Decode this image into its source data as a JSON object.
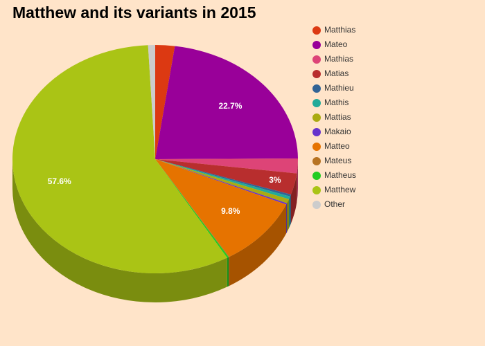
{
  "chart_data": {
    "type": "pie",
    "title": "Matthew and its variants in 2015",
    "series": [
      {
        "name": "Matthias",
        "color": "#dc3912",
        "values": [
          2.2
        ]
      },
      {
        "name": "Mateo",
        "color": "#990099",
        "values": [
          22.7
        ],
        "value_labels": [
          "22.7%"
        ]
      },
      {
        "name": "Mathias",
        "color": "#dd4477",
        "values": [
          2.1
        ]
      },
      {
        "name": "Matias",
        "color": "#b82e2e",
        "values": [
          3
        ],
        "value_labels": [
          "3%"
        ]
      },
      {
        "name": "Mathieu",
        "color": "#316395",
        "values": [
          0.3
        ]
      },
      {
        "name": "Mathis",
        "color": "#22aa99",
        "values": [
          0.4
        ]
      },
      {
        "name": "Mattias",
        "color": "#aaaa11",
        "values": [
          0.6
        ]
      },
      {
        "name": "Makaio",
        "color": "#6633cc",
        "values": [
          0.2
        ]
      },
      {
        "name": "Matteo",
        "color": "#e67300",
        "values": [
          9.8
        ],
        "value_labels": [
          "9.8%"
        ]
      },
      {
        "name": "Mateus",
        "color": "#b77322",
        "values": [
          0.1
        ]
      },
      {
        "name": "Matheus",
        "color": "#22cc22",
        "values": [
          0.2
        ]
      },
      {
        "name": "Matthew",
        "color": "#aac415",
        "values": [
          57.6
        ],
        "value_labels": [
          "57.6%"
        ]
      },
      {
        "name": "Other",
        "color": "#cccccc",
        "values": [
          0.8
        ]
      }
    ]
  }
}
